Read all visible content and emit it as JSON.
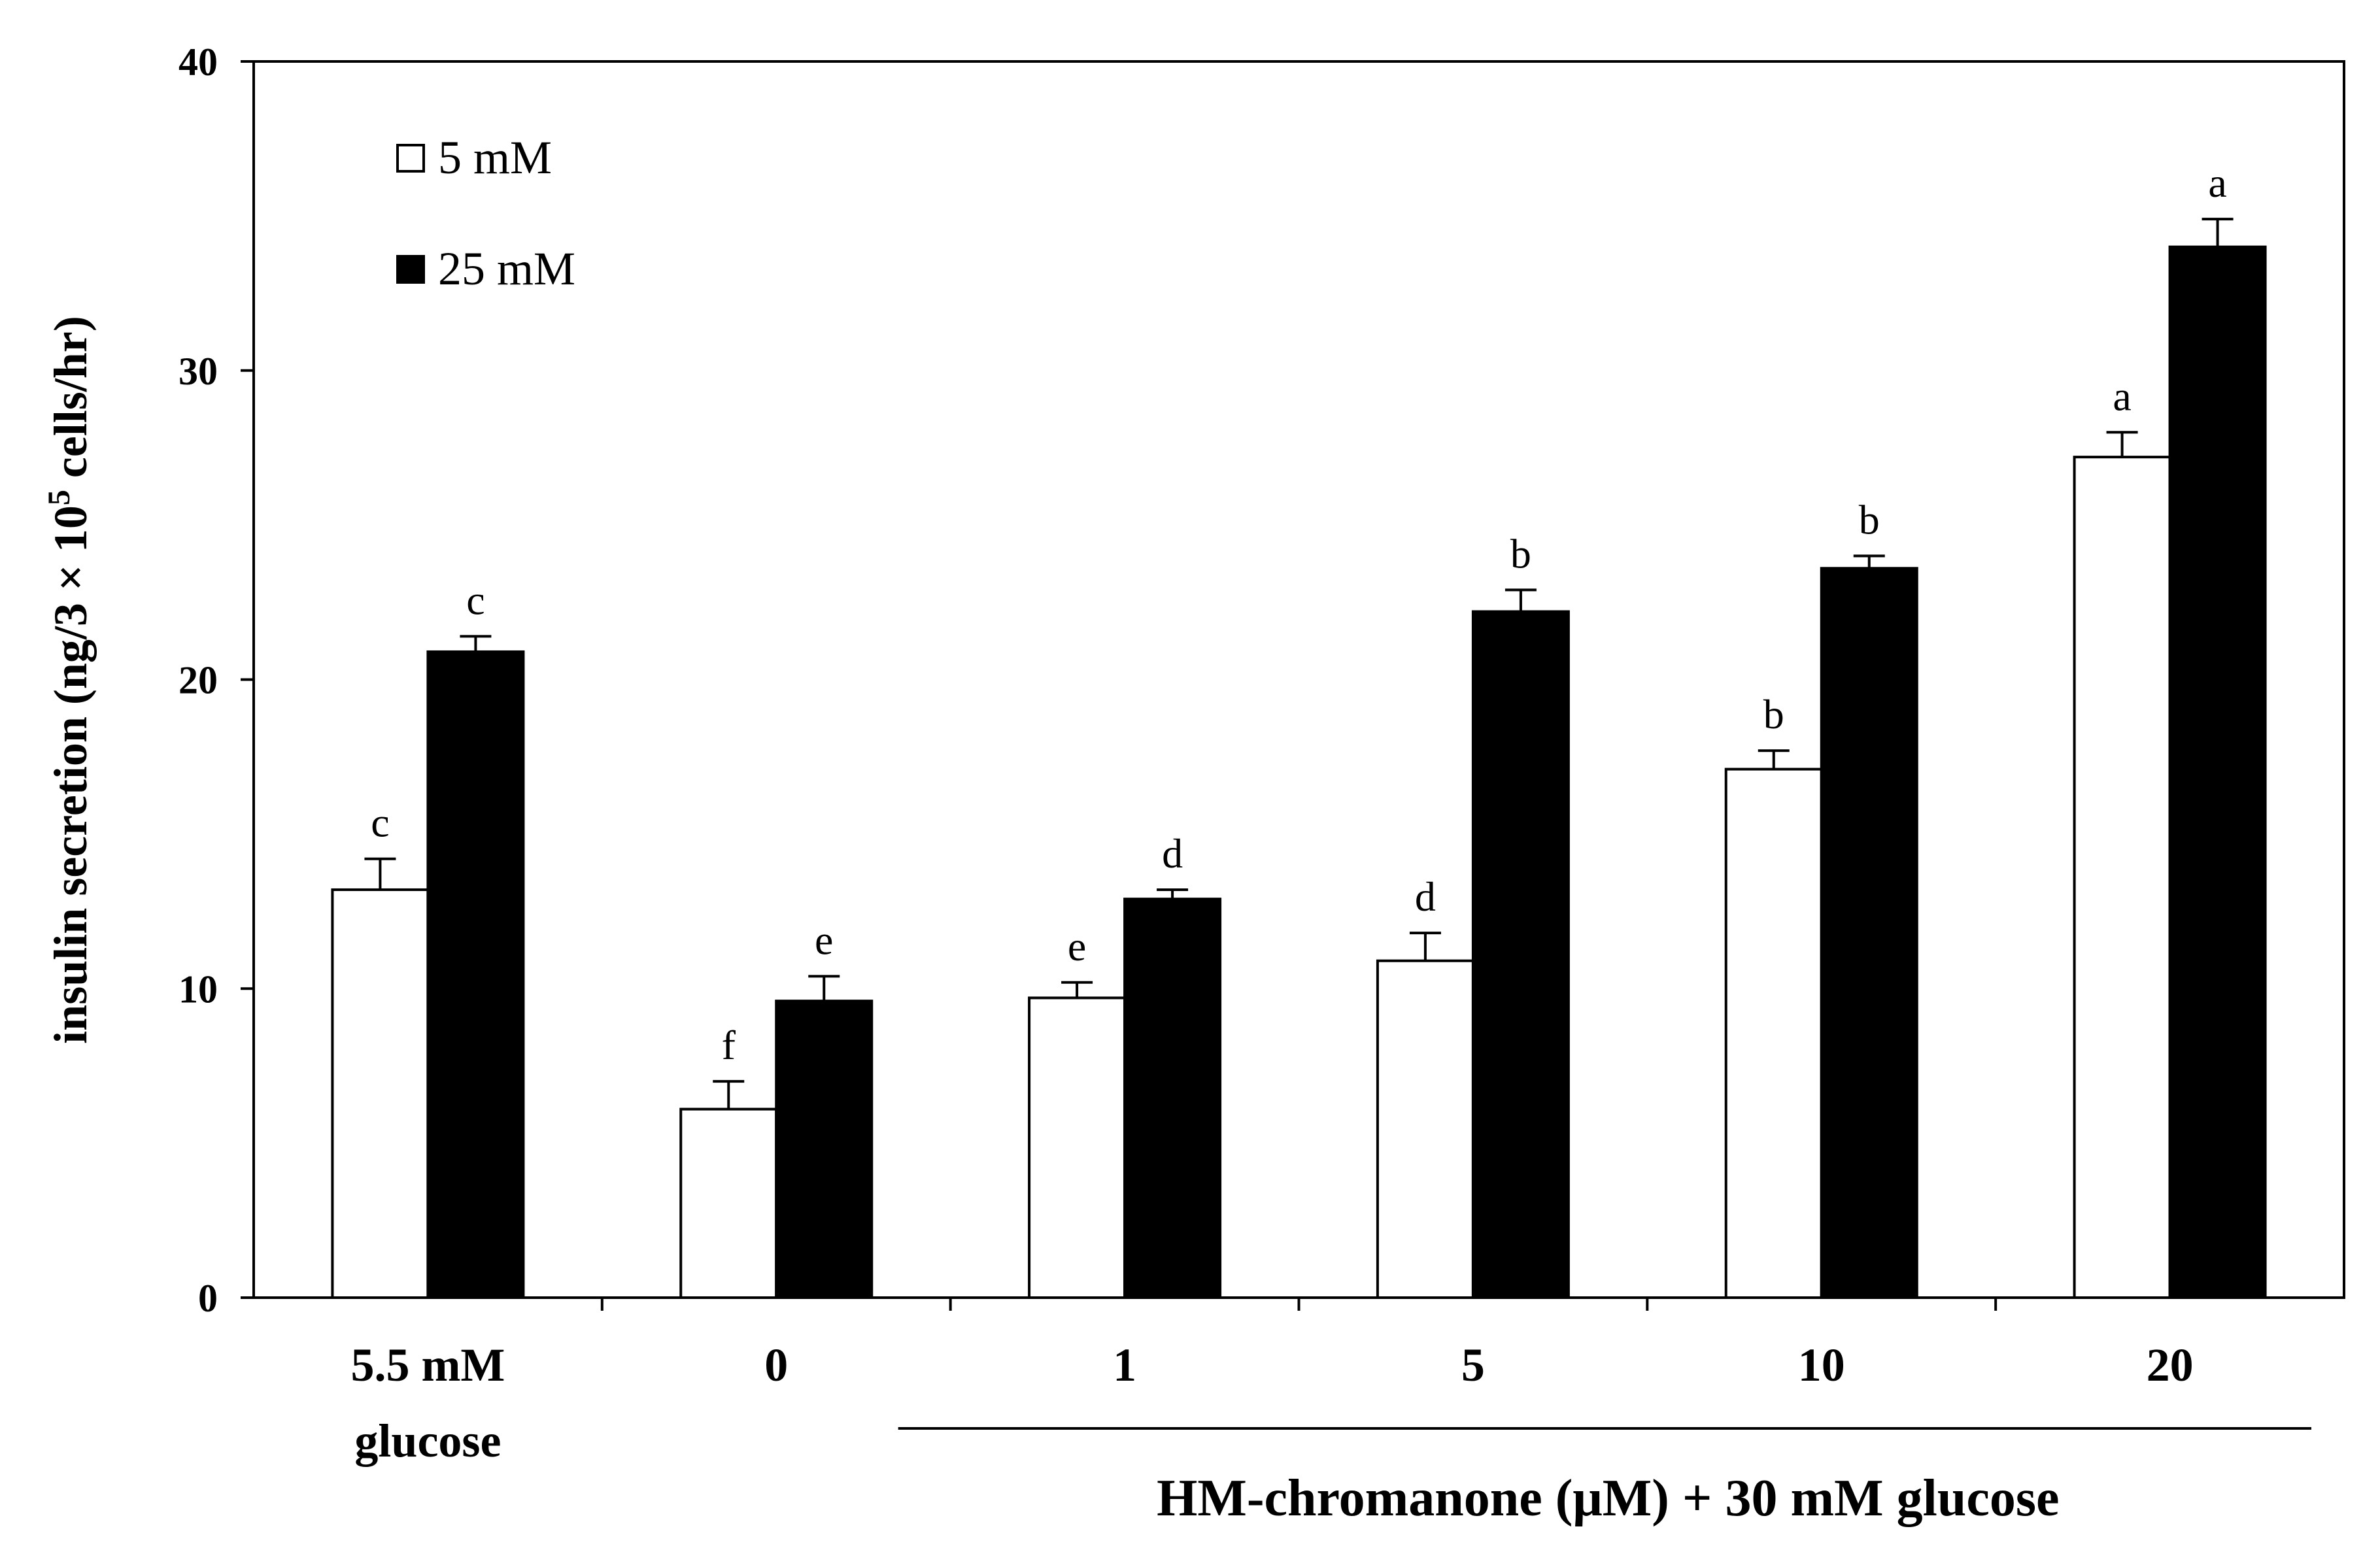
{
  "chart_data": {
    "type": "bar",
    "title": "",
    "ylabel": "insulin secretion (ng/3 × 10",
    "ylabel_sup": "5",
    "ylabel_tail": " cells/hr)",
    "xlabel": "HM-chromanone (μM) + 30 mM glucose",
    "ylim": [
      0,
      40
    ],
    "yticks": [
      "0",
      "10",
      "20",
      "30",
      "40"
    ],
    "categories": [
      {
        "line1": "5.5 mM",
        "line2": "glucose"
      },
      {
        "line1": "0",
        "line2": ""
      },
      {
        "line1": "1",
        "line2": ""
      },
      {
        "line1": "5",
        "line2": ""
      },
      {
        "line1": "10",
        "line2": ""
      },
      {
        "line1": "20",
        "line2": ""
      }
    ],
    "series": [
      {
        "name": "5 mM",
        "color": "#ffffff",
        "values": [
          13.2,
          6.1,
          9.7,
          10.9,
          17.1,
          27.2
        ],
        "errors": [
          1.0,
          0.9,
          0.5,
          0.9,
          0.6,
          0.8
        ],
        "letters": [
          "c",
          "f",
          "e",
          "d",
          "b",
          "a"
        ]
      },
      {
        "name": "25 mM",
        "color": "#000000",
        "values": [
          20.9,
          9.6,
          12.9,
          22.2,
          23.6,
          34.0
        ],
        "errors": [
          0.5,
          0.8,
          0.3,
          0.7,
          0.4,
          0.9
        ],
        "letters": [
          "c",
          "e",
          "d",
          "b",
          "b",
          "a"
        ]
      }
    ],
    "legend_position": "top-left",
    "grid": false
  }
}
